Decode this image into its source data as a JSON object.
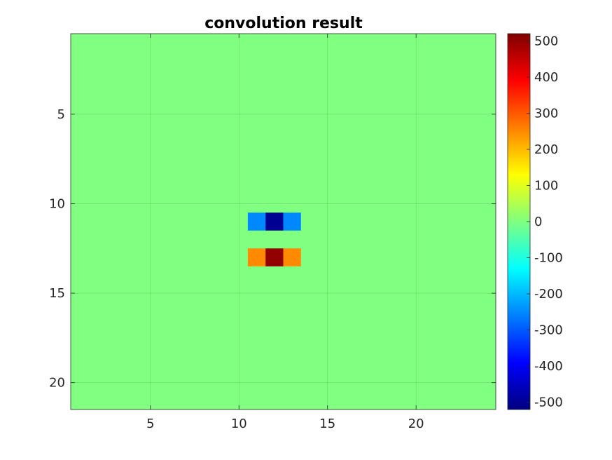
{
  "chart_data": {
    "type": "heatmap",
    "title": "convolution result",
    "xlabel": "",
    "ylabel": "",
    "xlim": [
      0.5,
      24.5
    ],
    "ylim": [
      0.5,
      21.5
    ],
    "y_reversed": true,
    "grid": true,
    "background_value": 0,
    "xticks": [
      5,
      10,
      15,
      20
    ],
    "yticks": [
      5,
      10,
      15,
      20
    ],
    "cells": [
      {
        "x": 11,
        "y": 11,
        "value": -250
      },
      {
        "x": 12,
        "y": 11,
        "value": -500
      },
      {
        "x": 13,
        "y": 11,
        "value": -250
      },
      {
        "x": 11,
        "y": 13,
        "value": 250
      },
      {
        "x": 12,
        "y": 13,
        "value": 500
      },
      {
        "x": 13,
        "y": 13,
        "value": 250
      }
    ],
    "colorbar": {
      "colormap": "jet",
      "clim": [
        -520,
        520
      ],
      "ticks": [
        500,
        400,
        300,
        200,
        100,
        0,
        -100,
        -200,
        -300,
        -400,
        -500
      ]
    }
  }
}
